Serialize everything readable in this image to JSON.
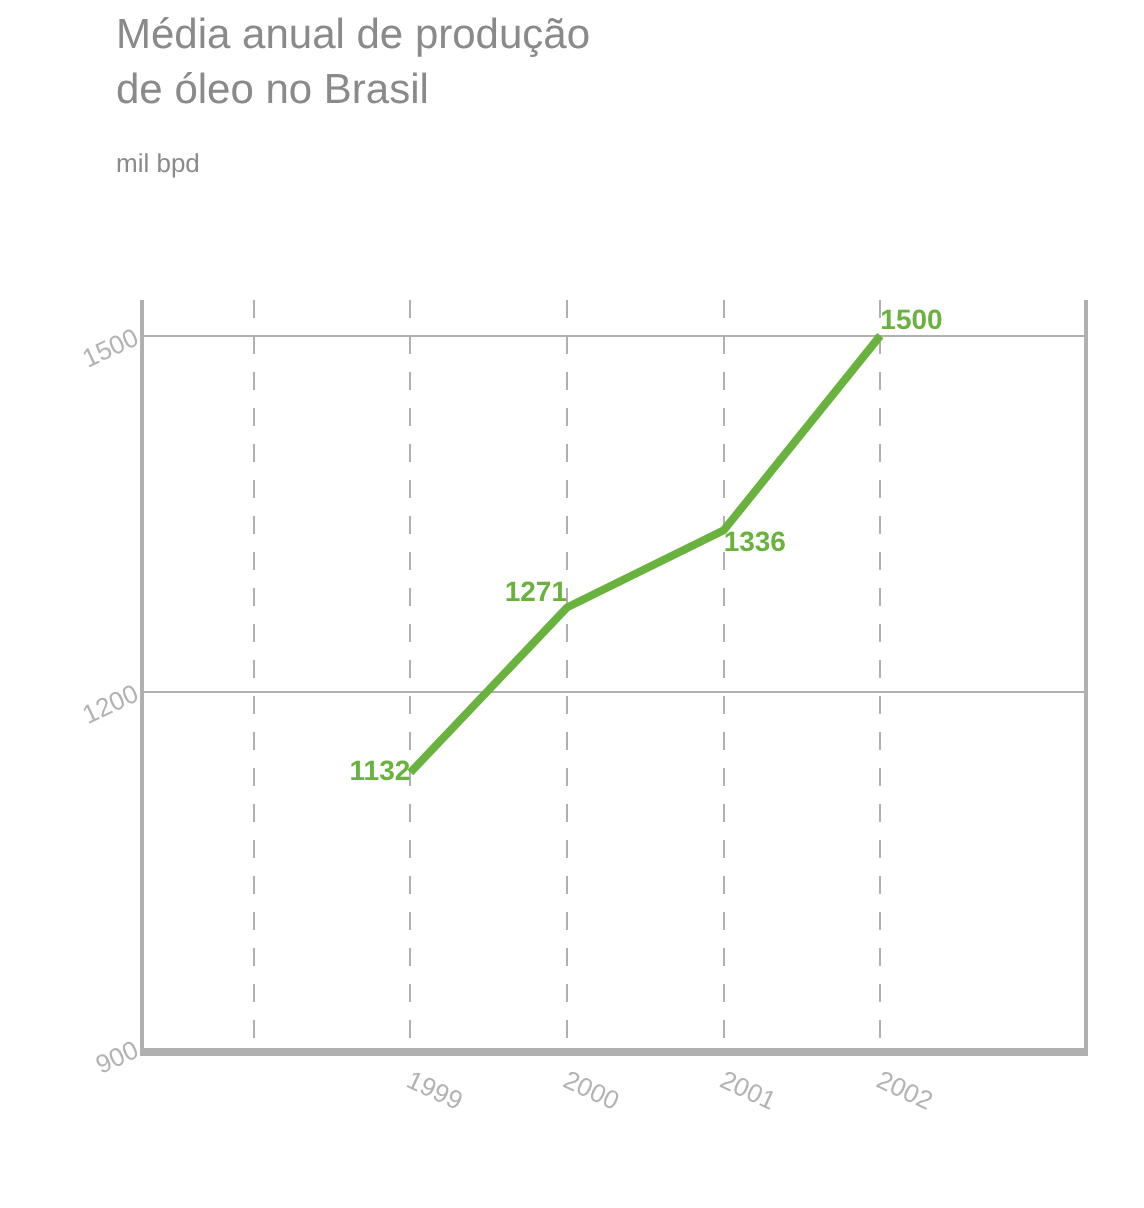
{
  "chart_data": {
    "type": "line",
    "title": "Média anual de produção de óleo no Brasil",
    "subtitle": "mil bpd",
    "x": [
      1999,
      2000,
      2001,
      2002
    ],
    "values": [
      1132,
      1271,
      1336,
      1500
    ],
    "color": "#6ab23e",
    "data_labels": true,
    "xlim": [
      1997.3,
      2003.3
    ],
    "xticks": [
      {
        "value": 1998,
        "label": null
      },
      1999,
      2000,
      2001,
      2002
    ],
    "ylim": [
      900,
      1530
    ],
    "yticks": [
      900,
      1200,
      1500
    ],
    "grid": true
  }
}
